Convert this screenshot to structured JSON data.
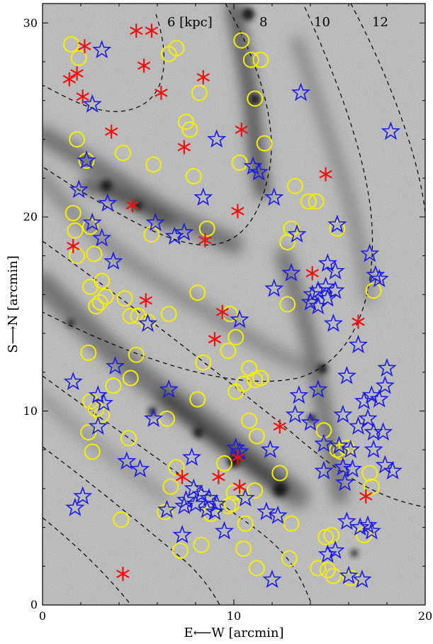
{
  "chart_data": {
    "type": "scatter",
    "xlabel": "E⟵W [arcmin]",
    "ylabel": "S⟶N [arcmin]",
    "xlim": [
      0,
      20
    ],
    "ylim": [
      0,
      31
    ],
    "x_ticks": [
      "0",
      "10",
      "20"
    ],
    "y_ticks": [
      "0",
      "10",
      "20",
      "30"
    ],
    "x_minor_ticks": [
      2,
      4,
      6,
      8,
      12,
      14,
      16,
      18
    ],
    "y_minor_ticks": [
      2,
      4,
      6,
      8,
      12,
      14,
      16,
      18,
      22,
      24,
      26,
      28
    ],
    "contour_labels": [
      {
        "text": "6 [kpc]",
        "x": 7.0,
        "y": 30.1
      },
      {
        "text": "8",
        "x": 11.5,
        "y": 30.1
      },
      {
        "text": "10",
        "x": 14.8,
        "y": 30.1
      },
      {
        "text": "12",
        "x": 17.9,
        "y": 30.1
      }
    ],
    "colors": {
      "circles": "#f5ef00",
      "stars": "#1a1ae6",
      "asterisks": "#ee1111",
      "contours": "#000000",
      "background": "#d6d6d6"
    },
    "series": [
      {
        "marker": "circle",
        "points": [
          [
            1.5,
            28.9
          ],
          [
            1.9,
            28.2
          ],
          [
            6.6,
            28.4
          ],
          [
            7.0,
            28.7
          ],
          [
            10.4,
            29.1
          ],
          [
            10.9,
            28.1
          ],
          [
            11.4,
            28.1
          ],
          [
            8.2,
            26.4
          ],
          [
            11.1,
            26.1
          ],
          [
            7.5,
            24.9
          ],
          [
            7.7,
            24.5
          ],
          [
            1.8,
            24.0
          ],
          [
            2.3,
            22.9
          ],
          [
            4.2,
            23.3
          ],
          [
            5.8,
            22.7
          ],
          [
            7.9,
            22.1
          ],
          [
            10.3,
            22.8
          ],
          [
            11.6,
            23.8
          ],
          [
            13.2,
            21.6
          ],
          [
            13.9,
            20.8
          ],
          [
            14.3,
            20.8
          ],
          [
            15.4,
            19.4
          ],
          [
            1.6,
            20.2
          ],
          [
            1.7,
            19.3
          ],
          [
            2.5,
            19.5
          ],
          [
            5.7,
            19.1
          ],
          [
            8.6,
            19.4
          ],
          [
            13.0,
            19.4
          ],
          [
            12.8,
            18.7
          ],
          [
            1.8,
            18.0
          ],
          [
            2.7,
            18.1
          ],
          [
            3.1,
            16.7
          ],
          [
            2.5,
            16.4
          ],
          [
            3.3,
            15.9
          ],
          [
            2.8,
            15.4
          ],
          [
            3.0,
            15.6
          ],
          [
            4.3,
            15.8
          ],
          [
            4.6,
            14.9
          ],
          [
            5.0,
            14.9
          ],
          [
            5.5,
            14.6
          ],
          [
            6.6,
            15.0
          ],
          [
            8.1,
            16.1
          ],
          [
            9.8,
            15.0
          ],
          [
            10.1,
            13.8
          ],
          [
            9.7,
            13.1
          ],
          [
            12.8,
            15.5
          ],
          [
            17.3,
            16.2
          ],
          [
            2.4,
            13.0
          ],
          [
            4.9,
            12.9
          ],
          [
            8.4,
            12.5
          ],
          [
            2.5,
            10.5
          ],
          [
            2.8,
            10.1
          ],
          [
            3.1,
            9.8
          ],
          [
            2.4,
            8.9
          ],
          [
            3.7,
            11.3
          ],
          [
            4.6,
            11.7
          ],
          [
            2.6,
            7.9
          ],
          [
            4.5,
            8.6
          ],
          [
            6.5,
            9.6
          ],
          [
            8.1,
            10.6
          ],
          [
            10.1,
            11.0
          ],
          [
            10.5,
            11.4
          ],
          [
            10.8,
            12.2
          ],
          [
            11.1,
            11.6
          ],
          [
            11.4,
            11.7
          ],
          [
            10.8,
            9.5
          ],
          [
            11.2,
            8.7
          ],
          [
            14.7,
            9.0
          ],
          [
            15.4,
            8.0
          ],
          [
            15.6,
            7.9
          ],
          [
            15.9,
            8.1
          ],
          [
            17.1,
            6.8
          ],
          [
            17.2,
            6.1
          ],
          [
            7.0,
            7.1
          ],
          [
            9.5,
            7.3
          ],
          [
            6.7,
            6.1
          ],
          [
            8.8,
            4.7
          ],
          [
            9.7,
            5.1
          ],
          [
            9.9,
            5.2
          ],
          [
            10.0,
            5.8
          ],
          [
            11.1,
            5.9
          ],
          [
            12.4,
            6.8
          ],
          [
            10.6,
            4.2
          ],
          [
            13.0,
            4.2
          ],
          [
            4.1,
            4.4
          ],
          [
            6.4,
            4.8
          ],
          [
            7.2,
            2.8
          ],
          [
            8.3,
            3.1
          ],
          [
            10.5,
            2.9
          ],
          [
            11.2,
            1.9
          ],
          [
            12.9,
            2.4
          ],
          [
            14.4,
            1.9
          ],
          [
            14.9,
            1.8
          ],
          [
            15.2,
            1.5
          ],
          [
            16.1,
            1.4
          ],
          [
            14.8,
            3.5
          ],
          [
            15.1,
            3.6
          ],
          [
            16.8,
            3.6
          ]
        ]
      },
      {
        "marker": "star",
        "points": [
          [
            3.1,
            28.6
          ],
          [
            2.6,
            25.8
          ],
          [
            13.5,
            26.4
          ],
          [
            18.2,
            24.4
          ],
          [
            9.1,
            24.0
          ],
          [
            2.3,
            22.9
          ],
          [
            11.0,
            22.6
          ],
          [
            11.3,
            22.3
          ],
          [
            1.9,
            21.4
          ],
          [
            3.4,
            20.7
          ],
          [
            8.4,
            21.0
          ],
          [
            12.1,
            21.0
          ],
          [
            2.6,
            19.7
          ],
          [
            5.9,
            19.7
          ],
          [
            6.9,
            19.0
          ],
          [
            7.4,
            19.2
          ],
          [
            3.1,
            18.9
          ],
          [
            3.7,
            17.7
          ],
          [
            13.3,
            19.1
          ],
          [
            15.4,
            19.6
          ],
          [
            17.1,
            18.1
          ],
          [
            13.0,
            17.1
          ],
          [
            14.9,
            17.6
          ],
          [
            15.3,
            17.2
          ],
          [
            17.4,
            17.0
          ],
          [
            17.6,
            16.8
          ],
          [
            12.1,
            16.3
          ],
          [
            14.1,
            16.0
          ],
          [
            14.4,
            16.2
          ],
          [
            14.8,
            16.4
          ],
          [
            15.3,
            16.2
          ],
          [
            14.0,
            15.6
          ],
          [
            14.4,
            15.4
          ],
          [
            14.9,
            15.8
          ],
          [
            5.5,
            14.5
          ],
          [
            10.3,
            14.7
          ],
          [
            15.2,
            14.5
          ],
          [
            16.5,
            13.4
          ],
          [
            1.6,
            11.5
          ],
          [
            3.8,
            12.3
          ],
          [
            6.6,
            11.1
          ],
          [
            2.9,
            10.8
          ],
          [
            3.2,
            10.4
          ],
          [
            13.4,
            10.8
          ],
          [
            14.4,
            11.1
          ],
          [
            15.9,
            11.8
          ],
          [
            16.8,
            10.5
          ],
          [
            17.2,
            10.8
          ],
          [
            17.6,
            10.6
          ],
          [
            17.9,
            11.3
          ],
          [
            18.0,
            12.2
          ],
          [
            13.2,
            9.8
          ],
          [
            14.0,
            9.4
          ],
          [
            15.7,
            9.8
          ],
          [
            16.5,
            9.2
          ],
          [
            17.0,
            9.6
          ],
          [
            17.3,
            8.9
          ],
          [
            17.8,
            8.9
          ],
          [
            15.5,
            8.2
          ],
          [
            16.1,
            8.0
          ],
          [
            17.3,
            8.0
          ],
          [
            17.9,
            7.2
          ],
          [
            18.3,
            6.9
          ],
          [
            2.9,
            9.2
          ],
          [
            5.8,
            9.6
          ],
          [
            14.7,
            8.3
          ],
          [
            10.1,
            8.1
          ],
          [
            11.9,
            8.0
          ],
          [
            7.8,
            7.6
          ],
          [
            10.3,
            7.9
          ],
          [
            4.4,
            7.4
          ],
          [
            5.1,
            7.0
          ],
          [
            14.7,
            6.9
          ],
          [
            15.7,
            7.1
          ],
          [
            16.2,
            7.0
          ],
          [
            15.8,
            6.3
          ],
          [
            7.9,
            6.0
          ],
          [
            8.3,
            5.7
          ],
          [
            8.7,
            5.5
          ],
          [
            9.1,
            5.2
          ],
          [
            7.5,
            5.4
          ],
          [
            8.0,
            5.2
          ],
          [
            8.6,
            4.9
          ],
          [
            9.0,
            4.8
          ],
          [
            10.6,
            5.5
          ],
          [
            11.7,
            4.8
          ],
          [
            12.3,
            4.6
          ],
          [
            6.5,
            4.9
          ],
          [
            7.4,
            5.1
          ],
          [
            2.1,
            5.6
          ],
          [
            1.7,
            5.0
          ],
          [
            7.3,
            3.6
          ],
          [
            9.5,
            3.8
          ],
          [
            14.9,
            2.6
          ],
          [
            15.3,
            2.8
          ],
          [
            15.9,
            4.3
          ],
          [
            16.6,
            4.0
          ],
          [
            17.0,
            4.1
          ],
          [
            17.2,
            3.8
          ],
          [
            12.0,
            1.3
          ],
          [
            16.0,
            1.5
          ],
          [
            16.7,
            1.3
          ]
        ]
      },
      {
        "marker": "asterisk",
        "points": [
          [
            4.9,
            29.6
          ],
          [
            5.7,
            29.6
          ],
          [
            2.2,
            28.8
          ],
          [
            5.3,
            27.8
          ],
          [
            1.4,
            27.1
          ],
          [
            1.8,
            27.4
          ],
          [
            8.4,
            27.2
          ],
          [
            6.2,
            26.4
          ],
          [
            2.1,
            26.2
          ],
          [
            3.6,
            24.4
          ],
          [
            7.4,
            23.6
          ],
          [
            10.4,
            24.5
          ],
          [
            14.8,
            22.2
          ],
          [
            4.7,
            20.6
          ],
          [
            10.2,
            20.3
          ],
          [
            8.5,
            18.8
          ],
          [
            1.6,
            18.5
          ],
          [
            14.1,
            17.1
          ],
          [
            5.4,
            15.7
          ],
          [
            9.4,
            15.1
          ],
          [
            16.5,
            14.6
          ],
          [
            9.0,
            13.7
          ],
          [
            12.4,
            9.2
          ],
          [
            10.2,
            7.6
          ],
          [
            7.3,
            6.6
          ],
          [
            9.2,
            6.6
          ],
          [
            10.3,
            6.1
          ],
          [
            16.9,
            5.6
          ],
          [
            4.2,
            1.6
          ]
        ]
      }
    ]
  }
}
